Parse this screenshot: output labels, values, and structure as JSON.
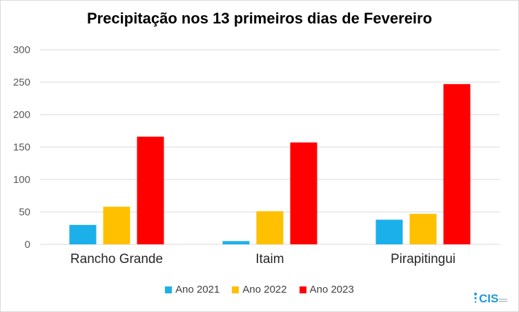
{
  "chart_data": {
    "type": "bar",
    "title": "Precipitação nos 13 primeiros dias de Fevereiro",
    "categories": [
      "Rancho Grande",
      "Itaim",
      "Pirapitingui"
    ],
    "series": [
      {
        "name": "Ano 2021",
        "color": "#1cb0ea",
        "values": [
          30,
          5,
          38
        ]
      },
      {
        "name": "Ano 2022",
        "color": "#ffc000",
        "values": [
          58,
          51,
          47
        ]
      },
      {
        "name": "Ano 2023",
        "color": "#ff0000",
        "values": [
          166,
          157,
          247
        ]
      }
    ],
    "ylim": [
      0,
      300
    ],
    "yticks": [
      0,
      50,
      100,
      150,
      200,
      250,
      300
    ],
    "grid": true,
    "legend": "bottom"
  },
  "logo": {
    "text": "CIS",
    "color": "#1a9bd7"
  }
}
